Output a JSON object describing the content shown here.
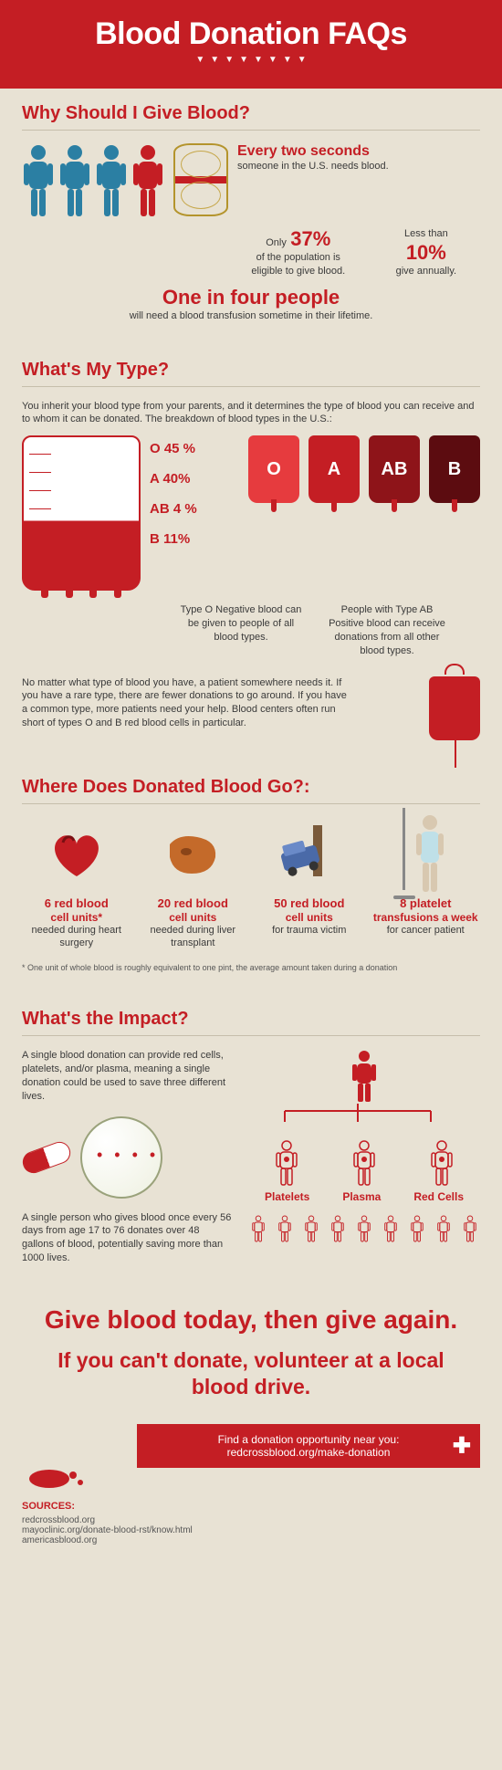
{
  "colors": {
    "red": "#c41e24",
    "beige": "#e8e2d4",
    "darkred": "#7a0f12",
    "blue": "#2b7fa3",
    "text": "#3a3a3a"
  },
  "header": {
    "title": "Blood Donation FAQs"
  },
  "sec1": {
    "title": "Why Should I Give Blood?",
    "one_in_four_big": "One in four people",
    "one_in_four_sub": "will need a blood transfusion sometime in their lifetime.",
    "every_two_big": "Every two seconds",
    "every_two_sub": "someone in the U.S. needs blood.",
    "only_word": "Only",
    "pct37": "37%",
    "pct37_sub": "of the population is eligible to give blood.",
    "less_than": "Less than",
    "pct10": "10%",
    "pct10_sub": "give annually."
  },
  "sec2": {
    "title": "What's My Type?",
    "intro": "You inherit your blood type from your parents, and it determines the type of blood you can receive and to whom it can be donated. The breakdown of blood types in the U.S.:",
    "percent_labels": [
      "O 45 %",
      "A 40%",
      "AB 4 %",
      "B 11%"
    ],
    "bags": [
      {
        "label": "O",
        "color": "#e63b3e"
      },
      {
        "label": "A",
        "color": "#c41e24"
      },
      {
        "label": "AB",
        "color": "#8e1419"
      },
      {
        "label": "B",
        "color": "#5c0c10"
      }
    ],
    "note_o": "Type O Negative blood can be given to people of all blood types.",
    "note_ab": "People with Type AB Positive blood can receive donations from all other blood types.",
    "bottom": "No matter what type of blood you have, a patient somewhere needs it. If you have a rare type, there are fewer donations to go around. If you have a common type, more patients need your help. Blood centers often run short of types O and B red blood cells in particular."
  },
  "sec3": {
    "title": "Where Does Donated Blood Go?:",
    "items": [
      {
        "lead": "6 red blood",
        "lead2": "cell units*",
        "sub": "needed during heart surgery"
      },
      {
        "lead": "20 red blood",
        "lead2": "cell units",
        "sub": "needed during liver transplant"
      },
      {
        "lead": "50 red blood",
        "lead2": "cell units",
        "sub": "for trauma victim"
      },
      {
        "lead": "8 platelet",
        "lead2": "transfusions a week",
        "sub": "for cancer patient"
      }
    ],
    "footnote": "* One unit of whole blood is roughly equivalent to one pint, the average amount taken during a donation"
  },
  "sec4": {
    "title": "What's the Impact?",
    "p1": "A single blood donation can provide red cells, platelets, and/or plasma, meaning a single donation could be used to save three different lives.",
    "p2": "A single person who gives blood once every 56 days from age 17 to 76 donates over 48 gallons of blood, potentially saving more than 1000 lives.",
    "tree_labels": [
      "Platelets",
      "Plasma",
      "Red Cells"
    ]
  },
  "cta": {
    "line1": "Give blood today, then give again.",
    "line2": "If you can't donate, volunteer at a local blood drive.",
    "banner_line1": "Find a donation opportunity near you:",
    "banner_line2": "redcrossblood.org/make-donation"
  },
  "sources": {
    "head": "SOURCES:",
    "list": [
      "redcrossblood.org",
      "mayoclinic.org/donate-blood-rst/know.html",
      "americasblood.org"
    ]
  }
}
